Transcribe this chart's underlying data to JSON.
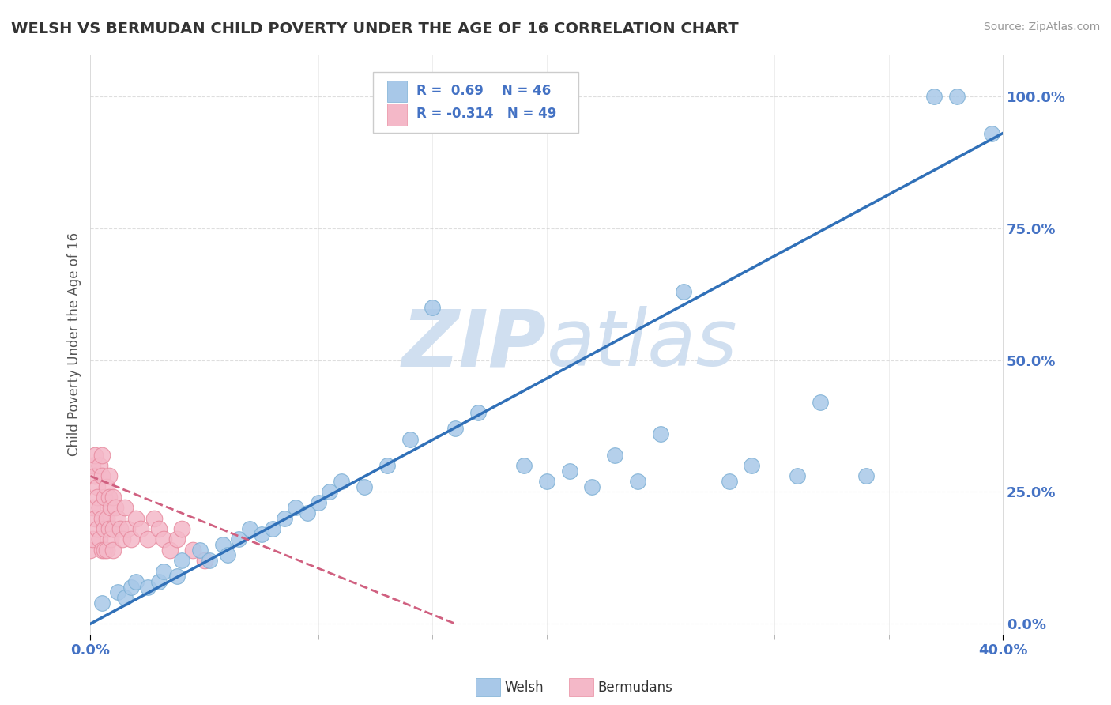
{
  "title": "WELSH VS BERMUDAN CHILD POVERTY UNDER THE AGE OF 16 CORRELATION CHART",
  "source": "Source: ZipAtlas.com",
  "ylabel": "Child Poverty Under the Age of 16",
  "ytick_values": [
    0.0,
    0.25,
    0.5,
    0.75,
    1.0
  ],
  "ytick_labels": [
    "0.0%",
    "25.0%",
    "50.0%",
    "75.0%",
    "100.0%"
  ],
  "xlim": [
    0.0,
    0.4
  ],
  "ylim": [
    -0.02,
    1.08
  ],
  "welsh_R": 0.69,
  "welsh_N": 46,
  "bermudan_R": -0.314,
  "bermudan_N": 49,
  "welsh_color": "#a8c8e8",
  "welsh_edge_color": "#7bafd4",
  "bermudan_color": "#f4b8c8",
  "bermudan_edge_color": "#e88ca0",
  "welsh_line_color": "#3070b8",
  "bermudan_line_color": "#d06080",
  "watermark_color": "#d0dff0",
  "grid_color": "#d0d0d0",
  "title_color": "#333333",
  "axis_label_color": "#4472c4",
  "tick_color": "#4472c4",
  "welsh_scatter_x": [
    0.005,
    0.012,
    0.015,
    0.018,
    0.02,
    0.025,
    0.03,
    0.032,
    0.038,
    0.04,
    0.048,
    0.052,
    0.058,
    0.06,
    0.065,
    0.07,
    0.075,
    0.08,
    0.085,
    0.09,
    0.095,
    0.1,
    0.105,
    0.11,
    0.12,
    0.13,
    0.14,
    0.15,
    0.16,
    0.17,
    0.19,
    0.2,
    0.21,
    0.22,
    0.23,
    0.24,
    0.25,
    0.26,
    0.28,
    0.29,
    0.31,
    0.32,
    0.34,
    0.37,
    0.38,
    0.395
  ],
  "welsh_scatter_y": [
    0.04,
    0.06,
    0.05,
    0.07,
    0.08,
    0.07,
    0.08,
    0.1,
    0.09,
    0.12,
    0.14,
    0.12,
    0.15,
    0.13,
    0.16,
    0.18,
    0.17,
    0.18,
    0.2,
    0.22,
    0.21,
    0.23,
    0.25,
    0.27,
    0.26,
    0.3,
    0.35,
    0.6,
    0.37,
    0.4,
    0.3,
    0.27,
    0.29,
    0.26,
    0.32,
    0.27,
    0.36,
    0.63,
    0.27,
    0.3,
    0.28,
    0.42,
    0.28,
    1.0,
    1.0,
    0.93
  ],
  "bermudan_scatter_x": [
    0.0,
    0.001,
    0.001,
    0.001,
    0.002,
    0.002,
    0.002,
    0.003,
    0.003,
    0.003,
    0.004,
    0.004,
    0.004,
    0.005,
    0.005,
    0.005,
    0.005,
    0.006,
    0.006,
    0.006,
    0.007,
    0.007,
    0.007,
    0.008,
    0.008,
    0.008,
    0.009,
    0.009,
    0.01,
    0.01,
    0.01,
    0.011,
    0.012,
    0.013,
    0.014,
    0.015,
    0.016,
    0.018,
    0.02,
    0.022,
    0.025,
    0.028,
    0.03,
    0.032,
    0.035,
    0.038,
    0.04,
    0.045,
    0.05
  ],
  "bermudan_scatter_y": [
    0.14,
    0.22,
    0.3,
    0.16,
    0.28,
    0.2,
    0.32,
    0.26,
    0.18,
    0.24,
    0.3,
    0.22,
    0.16,
    0.28,
    0.2,
    0.14,
    0.32,
    0.24,
    0.18,
    0.14,
    0.26,
    0.2,
    0.14,
    0.24,
    0.18,
    0.28,
    0.22,
    0.16,
    0.24,
    0.18,
    0.14,
    0.22,
    0.2,
    0.18,
    0.16,
    0.22,
    0.18,
    0.16,
    0.2,
    0.18,
    0.16,
    0.2,
    0.18,
    0.16,
    0.14,
    0.16,
    0.18,
    0.14,
    0.12
  ],
  "welsh_line_x": [
    0.0,
    0.4
  ],
  "welsh_line_y": [
    0.0,
    0.93
  ],
  "bermudan_line_x": [
    0.0,
    0.16
  ],
  "bermudan_line_y": [
    0.28,
    0.0
  ],
  "dot_size": 200,
  "bermudan_dot_size": 220
}
